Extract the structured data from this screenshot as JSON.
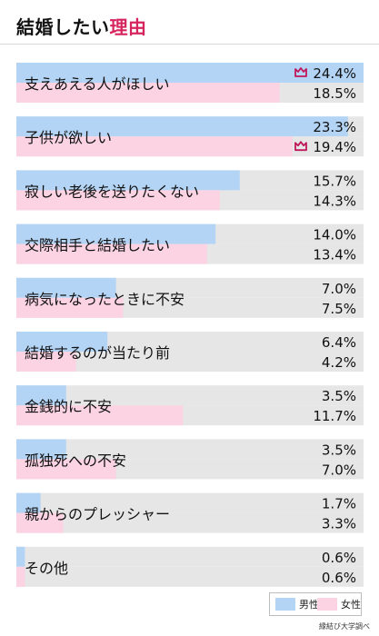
{
  "header": {
    "title_main": "結婚したい",
    "title_accent": "理由"
  },
  "colors": {
    "male": "#b3d4f5",
    "female": "#fbd3e2",
    "track": "#e6e6e6",
    "crown": "#c0185a",
    "accent": "#d6245e"
  },
  "chart_data": {
    "type": "bar",
    "orientation": "horizontal",
    "xlim": [
      0,
      24.4
    ],
    "unit": "%",
    "categories": [
      "支えあえる人がほしい",
      "子供が欲しい",
      "寂しい老後を送りたくない",
      "交際相手と結婚したい",
      "病気になったときに不安",
      "結婚するのが当たり前",
      "金銭的に不安",
      "孤独死への不安",
      "親からのプレッシャー",
      "その他"
    ],
    "series": [
      {
        "name": "男性",
        "values": [
          24.4,
          23.3,
          15.7,
          14.0,
          7.0,
          6.4,
          3.5,
          3.5,
          1.7,
          0.6
        ],
        "labels": [
          "24.4%",
          "23.3%",
          "15.7%",
          "14.0%",
          "7.0%",
          "6.4%",
          "3.5%",
          "3.5%",
          "1.7%",
          "0.6%"
        ]
      },
      {
        "name": "女性",
        "values": [
          18.5,
          19.4,
          14.3,
          13.4,
          7.5,
          4.2,
          11.7,
          7.0,
          3.3,
          0.6
        ],
        "labels": [
          "18.5%",
          "19.4%",
          "14.3%",
          "13.4%",
          "7.5%",
          "4.2%",
          "11.7%",
          "7.0%",
          "3.3%",
          "0.6%"
        ]
      }
    ],
    "top_markers": [
      {
        "series": 0,
        "category": 0,
        "icon": "crown-icon"
      },
      {
        "series": 1,
        "category": 1,
        "icon": "crown-icon"
      }
    ]
  },
  "legend": {
    "male": "男性",
    "female": "女性"
  },
  "source": "縁結び大学調べ"
}
